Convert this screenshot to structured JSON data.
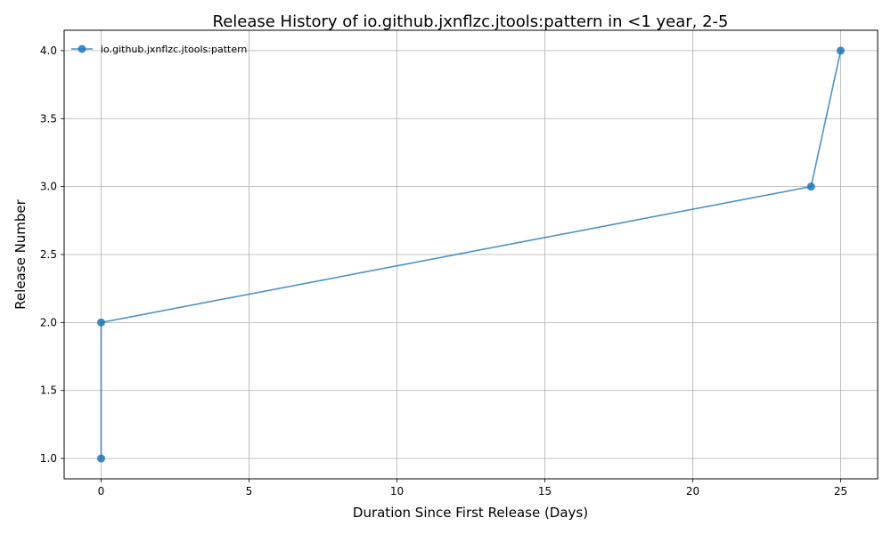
{
  "chart_data": {
    "type": "line",
    "title": "Release History of io.github.jxnflzc.jtools:pattern in <1 year, 2-5",
    "xlabel": "Duration Since First Release (Days)",
    "ylabel": "Release Number",
    "xlim": [
      -1.25,
      26.25
    ],
    "ylim": [
      0.85,
      4.15
    ],
    "xticks": [
      0,
      5,
      10,
      15,
      20,
      25
    ],
    "yticks": [
      1.0,
      1.5,
      2.0,
      2.5,
      3.0,
      3.5,
      4.0
    ],
    "xtick_labels": [
      "0",
      "5",
      "10",
      "15",
      "20",
      "25"
    ],
    "ytick_labels": [
      "1.0",
      "1.5",
      "2.0",
      "2.5",
      "3.0",
      "3.5",
      "4.0"
    ],
    "grid": true,
    "legend_position": "top-left",
    "series": [
      {
        "name": "io.github.jxnflzc.jtools:pattern",
        "color": "#1f77b4",
        "marker": "circle",
        "x": [
          0,
          0,
          24,
          25
        ],
        "y": [
          1,
          2,
          3,
          4
        ]
      }
    ]
  }
}
